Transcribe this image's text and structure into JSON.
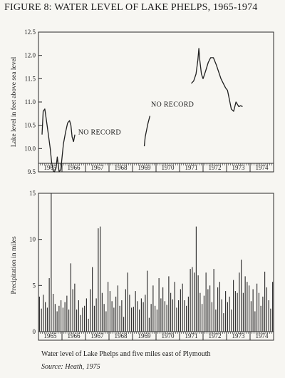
{
  "figure_title": "FIGURE 8: WATER LEVEL OF LAKE PHELPS, 1965-1974",
  "caption": "Water level of Lake Phelps and five miles east of Plymouth",
  "source": "Source: Heath, 1975",
  "chart_data": [
    {
      "type": "line",
      "ylabel": "Lake level in feet above sea level",
      "ylim": [
        9.5,
        12.5
      ],
      "yticks": [
        9.5,
        10.0,
        10.5,
        11.0,
        11.5,
        12.0,
        12.5
      ],
      "ytick_labels": [
        "9.5",
        "10.0",
        "10.5",
        "11.0",
        "11.5",
        "12.0",
        "12.5"
      ],
      "xlim": [
        1965.0,
        1975.0
      ],
      "xtick_labels": [
        "1965",
        "1966",
        "1967",
        "1968",
        "1969",
        "1970",
        "1971",
        "1972",
        "1973",
        "1974"
      ],
      "grid": false,
      "annotations": [
        {
          "text": "NO RECORD",
          "x": 1967.6,
          "y": 10.3
        },
        {
          "text": "NO RECORD",
          "x": 1970.7,
          "y": 10.9
        }
      ],
      "series": [
        {
          "x": [
            1965.15,
            1965.2,
            1965.27,
            1965.34,
            1965.42,
            1965.5,
            1965.56,
            1965.63,
            1965.68,
            1965.75,
            1965.8,
            1965.88,
            1965.95,
            1966.0,
            1966.06,
            1966.15,
            1966.24,
            1966.32,
            1966.38,
            1966.43,
            1966.49,
            1966.55
          ],
          "y": [
            10.3,
            10.8,
            10.85,
            10.6,
            10.3,
            10.0,
            9.7,
            9.52,
            9.5,
            9.6,
            9.82,
            9.5,
            9.55,
            9.8,
            10.1,
            10.35,
            10.55,
            10.6,
            10.5,
            10.25,
            10.15,
            10.3
          ]
        },
        {
          "x": [
            1969.5,
            1969.54,
            1969.58,
            1969.66,
            1969.74
          ],
          "y": [
            10.05,
            10.25,
            10.35,
            10.55,
            10.7
          ]
        },
        {
          "x": [
            1971.5,
            1971.6,
            1971.7,
            1971.78,
            1971.82,
            1971.86,
            1971.93,
            1972.0,
            1972.1,
            1972.22,
            1972.32,
            1972.44,
            1972.56,
            1972.66,
            1972.76,
            1972.86,
            1972.96,
            1973.04,
            1973.12,
            1973.2,
            1973.3,
            1973.4,
            1973.46,
            1973.52,
            1973.6,
            1973.68
          ],
          "y": [
            11.4,
            11.45,
            11.6,
            11.9,
            12.15,
            11.9,
            11.6,
            11.5,
            11.65,
            11.85,
            11.95,
            11.95,
            11.8,
            11.65,
            11.5,
            11.4,
            11.3,
            11.25,
            11.05,
            10.85,
            10.8,
            11.0,
            10.95,
            10.9,
            10.92,
            10.9
          ]
        }
      ]
    },
    {
      "type": "bar",
      "ylabel": "Precipitation in miles",
      "ylim": [
        0,
        15
      ],
      "yticks": [
        0,
        5,
        10,
        15
      ],
      "ytick_labels": [
        "0",
        "5",
        "10",
        "15"
      ],
      "xlim": [
        1965.0,
        1975.0
      ],
      "xtick_labels": [
        "1965",
        "1966",
        "1967",
        "1968",
        "1969",
        "1970",
        "1971",
        "1972",
        "1973",
        "1974"
      ],
      "grid": false,
      "bar_interval": "monthly",
      "values": [
        3.8,
        2.5,
        4.0,
        3.2,
        2.6,
        5.8,
        15.0,
        4.1,
        3.0,
        2.2,
        2.8,
        3.4,
        2.6,
        3.2,
        3.9,
        2.4,
        7.4,
        4.6,
        5.2,
        2.4,
        3.4,
        1.8,
        2.6,
        2.8,
        3.6,
        1.4,
        4.6,
        7.0,
        2.8,
        3.6,
        11.2,
        11.4,
        4.2,
        3.0,
        2.2,
        5.4,
        4.4,
        3.3,
        2.6,
        3.8,
        5.0,
        2.8,
        3.4,
        1.6,
        4.6,
        6.4,
        4.0,
        2.6,
        2.7,
        4.4,
        3.3,
        2.4,
        3.6,
        3.2,
        4.0,
        6.6,
        1.5,
        3.0,
        5.0,
        2.8,
        2.4,
        5.8,
        3.6,
        4.8,
        3.3,
        2.9,
        6.0,
        4.2,
        3.5,
        5.4,
        2.6,
        3.4,
        4.6,
        5.2,
        3.4,
        2.8,
        3.8,
        6.8,
        7.0,
        6.4,
        11.4,
        6.1,
        4.2,
        3.0,
        3.9,
        6.4,
        4.6,
        5.0,
        3.2,
        6.8,
        2.4,
        4.8,
        5.4,
        3.5,
        2.0,
        4.4,
        3.2,
        3.8,
        2.4,
        5.6,
        4.4,
        4.2,
        6.4,
        7.8,
        4.2,
        6.0,
        5.4,
        5.0,
        3.3,
        4.6,
        2.2,
        5.2,
        4.2,
        2.8,
        3.8,
        6.5,
        4.8,
        3.4,
        2.5,
        5.4
      ]
    }
  ]
}
